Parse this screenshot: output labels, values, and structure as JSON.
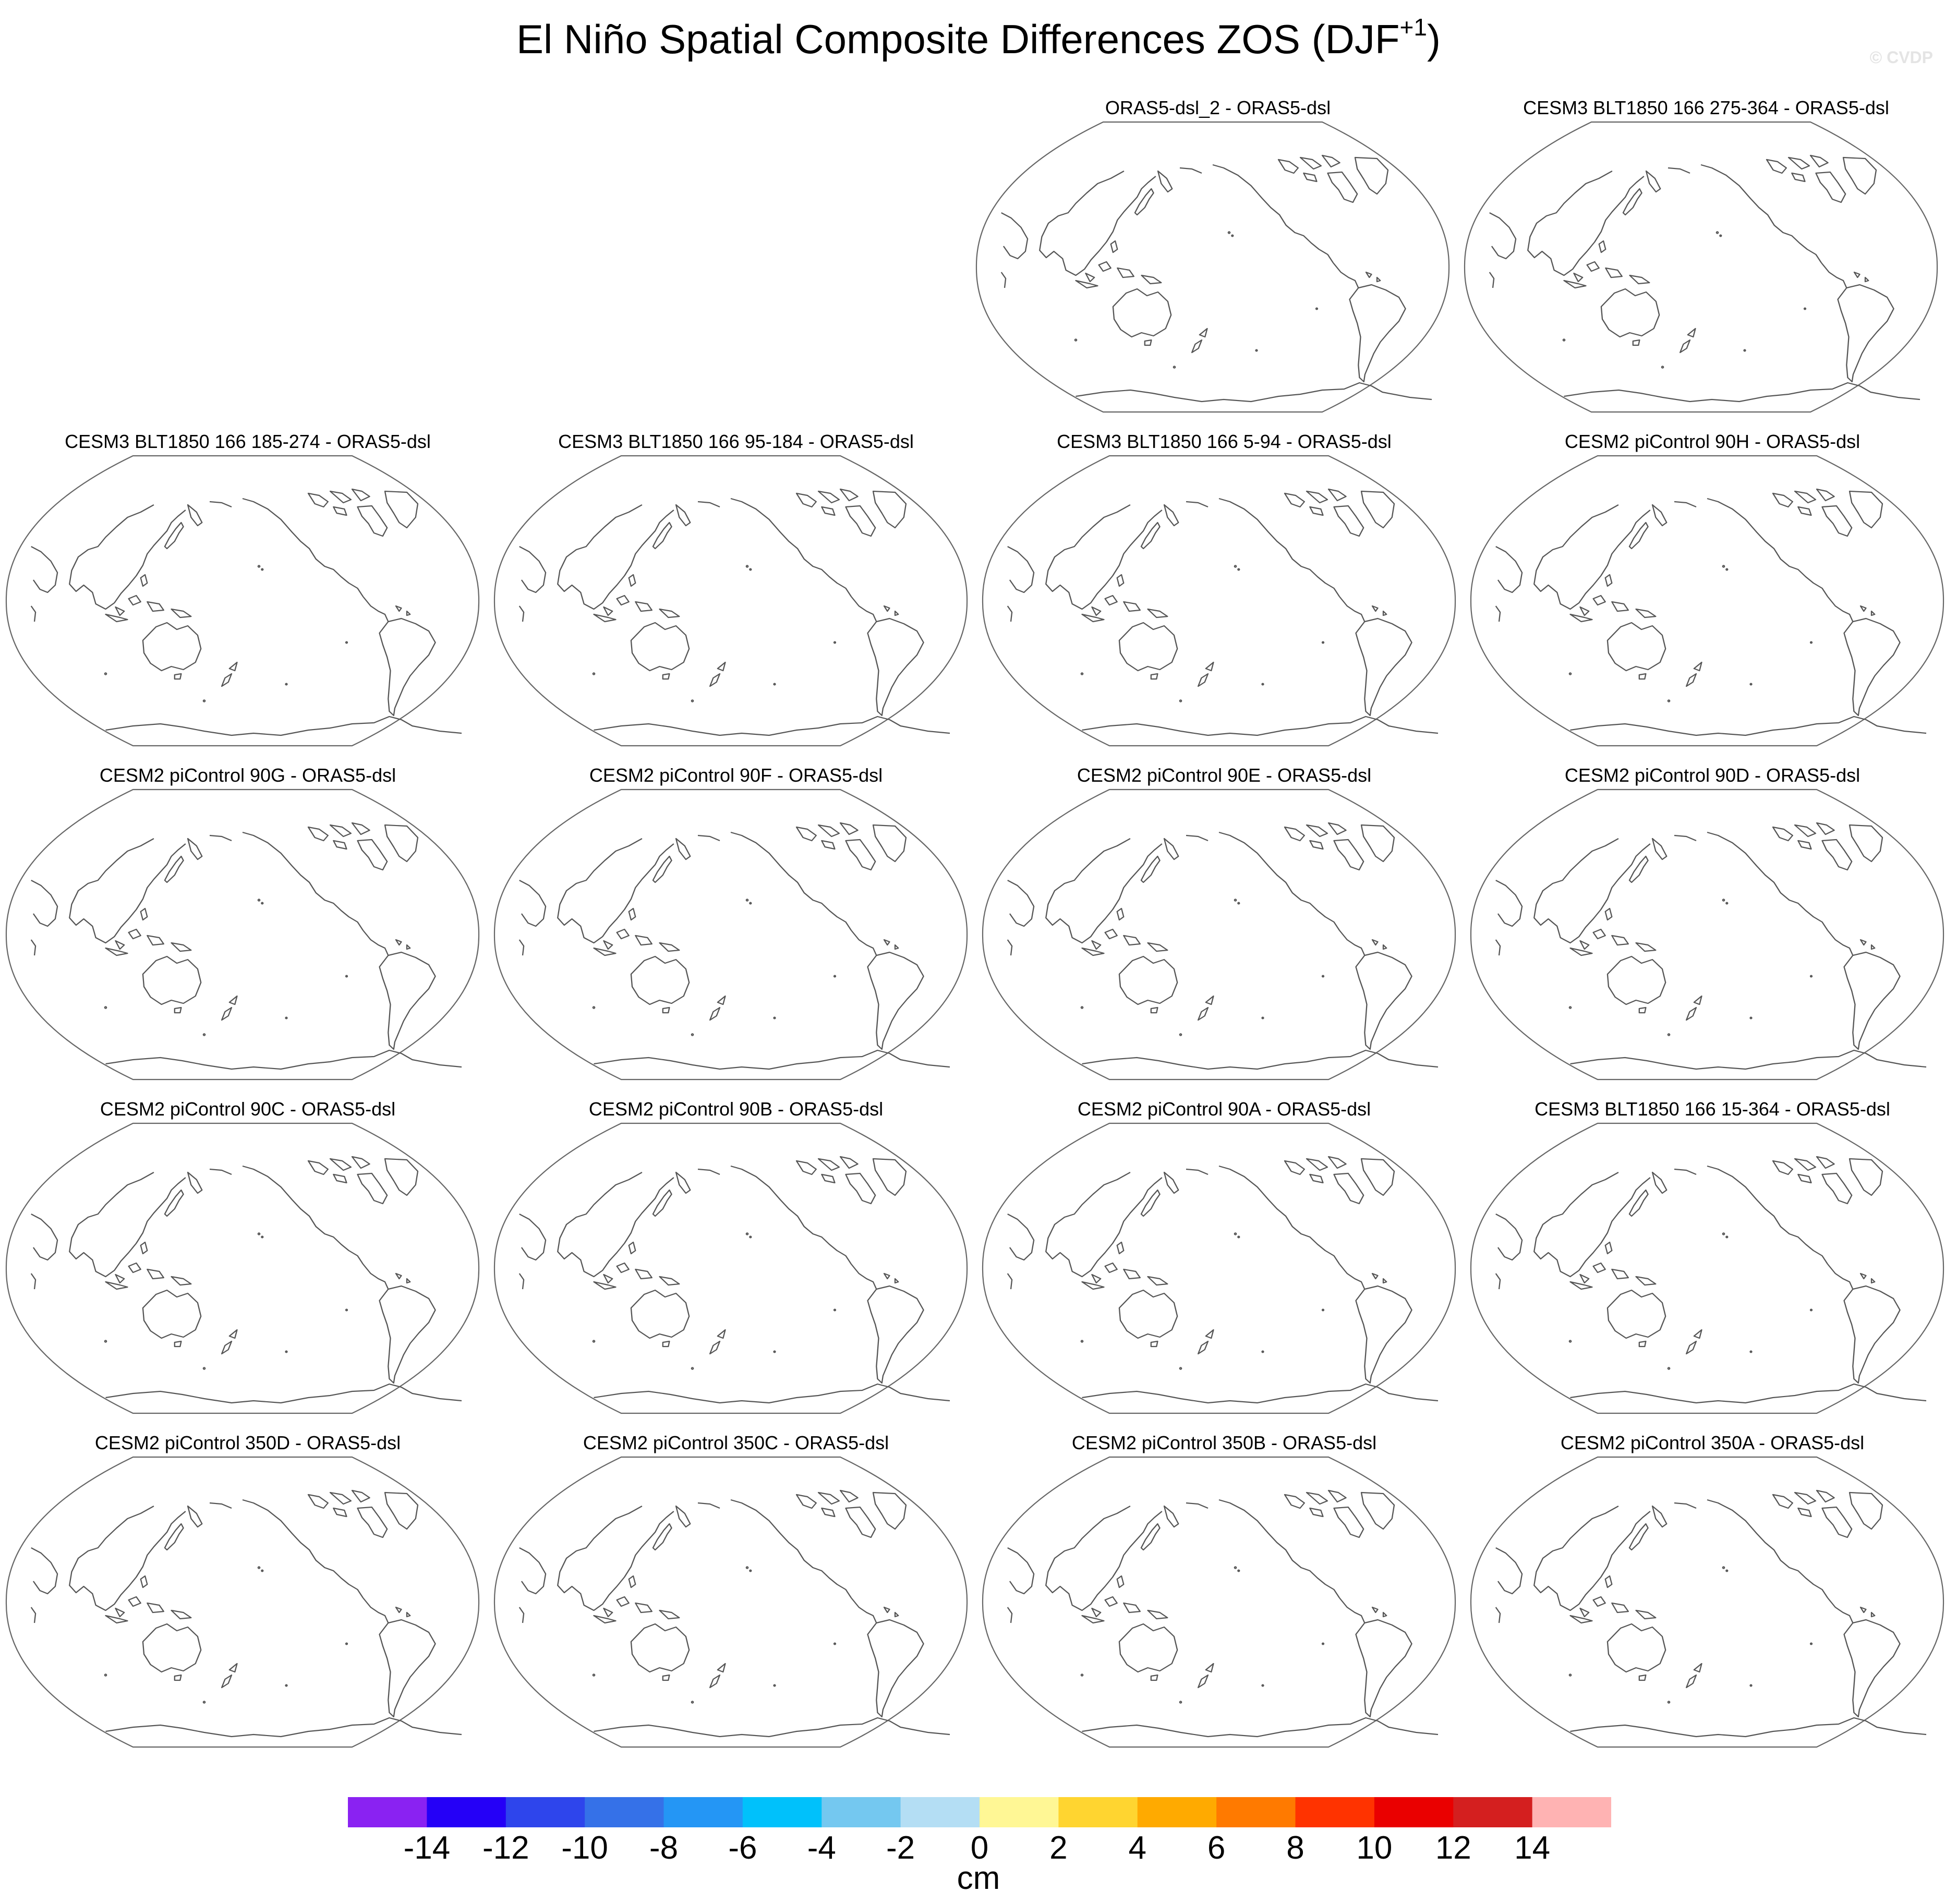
{
  "title": {
    "main": "El Niño Spatial Composite Differences ZOS (DJF",
    "superscript": "+1",
    "close": ")"
  },
  "watermark": "© CVDP",
  "panels": [
    "ORAS5-dsl_2 - ORAS5-dsl",
    "CESM3 BLT1850 166 275-364 - ORAS5-dsl",
    "CESM3 BLT1850 166 185-274 - ORAS5-dsl",
    "CESM3 BLT1850 166 95-184 - ORAS5-dsl",
    "CESM3 BLT1850 166 5-94 - ORAS5-dsl",
    "CESM2 piControl 90H - ORAS5-dsl",
    "CESM2 piControl 90G - ORAS5-dsl",
    "CESM2 piControl 90F - ORAS5-dsl",
    "CESM2 piControl 90E - ORAS5-dsl",
    "CESM2 piControl 90D - ORAS5-dsl",
    "CESM2 piControl 90C - ORAS5-dsl",
    "CESM2 piControl 90B - ORAS5-dsl",
    "CESM2 piControl 90A - ORAS5-dsl",
    "CESM3 BLT1850 166 15-364 - ORAS5-dsl",
    "CESM2 piControl 350D - ORAS5-dsl",
    "CESM2 piControl 350C - ORAS5-dsl",
    "CESM2 piControl 350B - ORAS5-dsl",
    "CESM2 piControl 350A - ORAS5-dsl"
  ],
  "colorbar": {
    "units": "cm",
    "labels": [
      "-14",
      "-12",
      "-10",
      "-8",
      "-6",
      "-4",
      "-2",
      "0",
      "2",
      "4",
      "6",
      "8",
      "10",
      "12",
      "14"
    ],
    "colors": [
      "#8a22f2",
      "#2500f7",
      "#2e45ec",
      "#3571e8",
      "#2496f5",
      "#00c1fb",
      "#74c8f0",
      "#b4def4",
      "#fff795",
      "#ffd530",
      "#ffaa00",
      "#ff7a00",
      "#ff3300",
      "#ea0000",
      "#d41f1f",
      "#ffb3b3"
    ]
  }
}
